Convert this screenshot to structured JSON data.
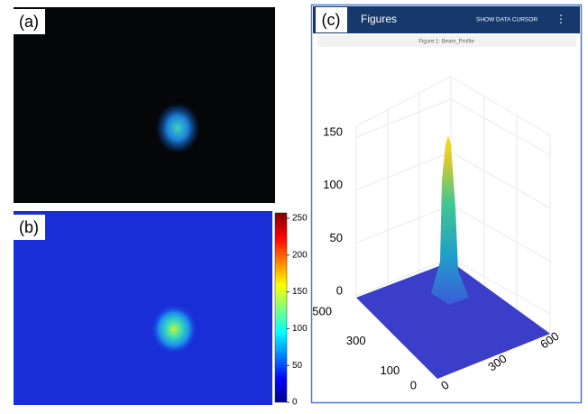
{
  "panels": [
    {
      "label": "(a)"
    },
    {
      "label": "(b)"
    },
    {
      "label": "(c)"
    }
  ],
  "colorbar": {
    "ticks": [
      0,
      50,
      100,
      150,
      200,
      250
    ]
  },
  "app": {
    "title": "Figures",
    "action": "SHOW DATA CURSOR",
    "menu": "⋮",
    "figure_title": "Figure 1: Beam_Profile"
  },
  "plot3d": {
    "zticks": [
      0,
      50,
      100,
      150
    ],
    "yticks": [
      0,
      100,
      300,
      500
    ],
    "xticks": [
      0,
      300,
      600
    ]
  }
}
